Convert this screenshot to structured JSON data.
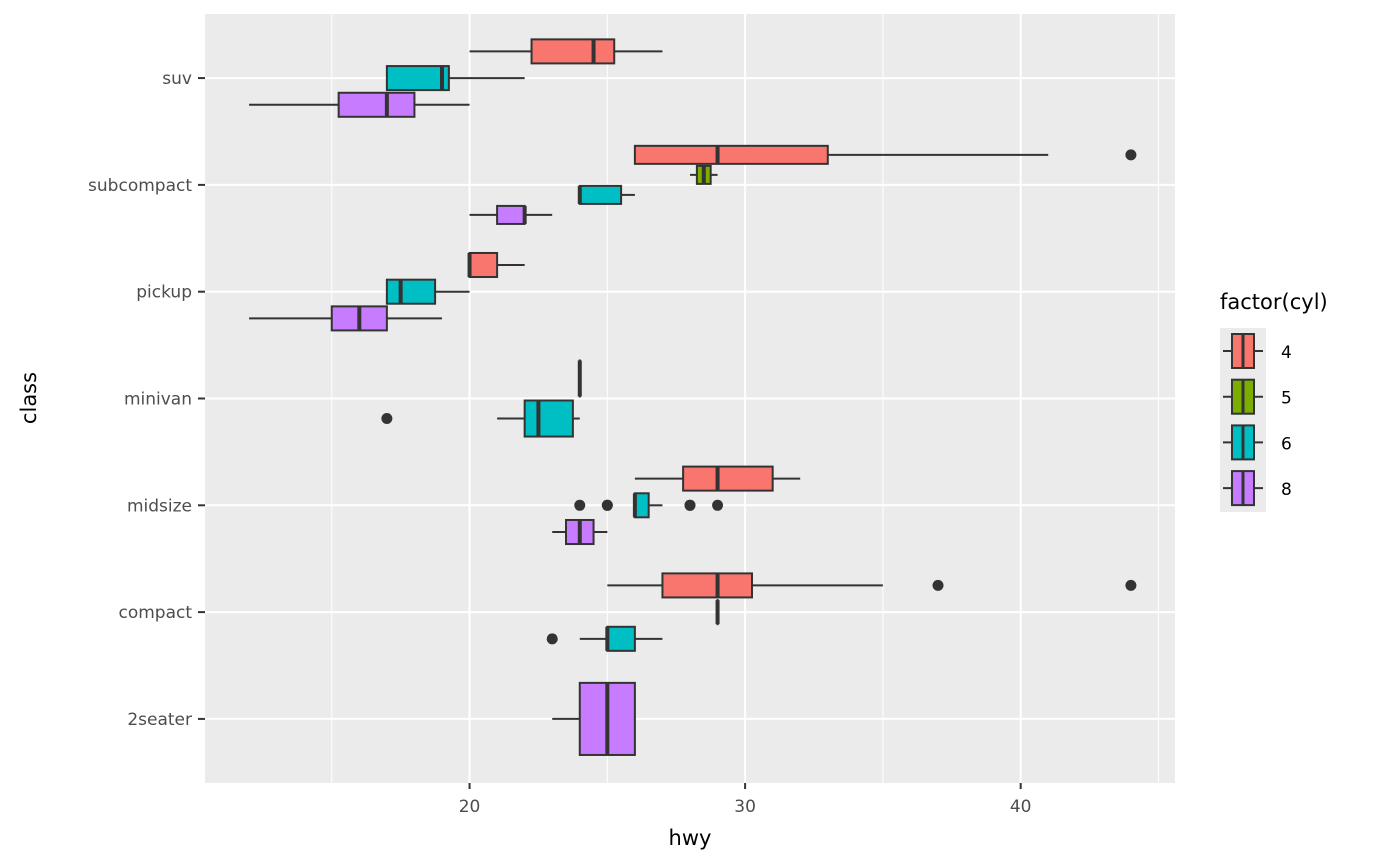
{
  "chart_data": {
    "type": "boxplot",
    "xlabel": "hwy",
    "ylabel": "class",
    "xlim": [
      10.4,
      45.6
    ],
    "xticks": [
      20,
      30,
      40
    ],
    "categories": [
      "2seater",
      "compact",
      "midsize",
      "minivan",
      "pickup",
      "subcompact",
      "suv"
    ],
    "legend": {
      "title": "factor(cyl)",
      "position": "right",
      "entries": [
        {
          "label": "4",
          "color": "#F8766D"
        },
        {
          "label": "5",
          "color": "#7CAE00"
        },
        {
          "label": "6",
          "color": "#00BFC4"
        },
        {
          "label": "8",
          "color": "#C77CFF"
        }
      ]
    },
    "boxes": [
      {
        "class": "suv",
        "groups": [
          {
            "cyl": "4",
            "lo": 20,
            "q1": 22.25,
            "med": 24.5,
            "q3": 25.25,
            "hi": 27,
            "out": []
          },
          {
            "cyl": "6",
            "lo": 17,
            "q1": 17,
            "med": 19,
            "q3": 19.25,
            "hi": 22,
            "out": []
          },
          {
            "cyl": "8",
            "lo": 12,
            "q1": 15.25,
            "med": 17,
            "q3": 18,
            "hi": 20,
            "out": []
          }
        ]
      },
      {
        "class": "subcompact",
        "groups": [
          {
            "cyl": "4",
            "lo": 26,
            "q1": 26,
            "med": 29,
            "q3": 33,
            "hi": 41,
            "out": [
              44
            ]
          },
          {
            "cyl": "5",
            "lo": 28,
            "q1": 28.25,
            "med": 28.5,
            "q3": 28.75,
            "hi": 29,
            "out": []
          },
          {
            "cyl": "6",
            "lo": 24,
            "q1": 24,
            "med": 24,
            "q3": 25.5,
            "hi": 26,
            "out": []
          },
          {
            "cyl": "8",
            "lo": 20,
            "q1": 21,
            "med": 22,
            "q3": 22,
            "hi": 23,
            "out": []
          }
        ]
      },
      {
        "class": "pickup",
        "groups": [
          {
            "cyl": "4",
            "lo": 20,
            "q1": 20,
            "med": 20,
            "q3": 21,
            "hi": 22,
            "out": []
          },
          {
            "cyl": "6",
            "lo": 17,
            "q1": 17,
            "med": 17.5,
            "q3": 18.75,
            "hi": 20,
            "out": []
          },
          {
            "cyl": "8",
            "lo": 12,
            "q1": 15,
            "med": 16,
            "q3": 17,
            "hi": 19,
            "out": []
          }
        ]
      },
      {
        "class": "minivan",
        "groups": [
          {
            "cyl": "4",
            "lo": 24,
            "q1": 24,
            "med": 24,
            "q3": 24,
            "hi": 24,
            "out": []
          },
          {
            "cyl": "6",
            "lo": 21,
            "q1": 22,
            "med": 22.5,
            "q3": 23.75,
            "hi": 24,
            "out": [
              17
            ]
          }
        ]
      },
      {
        "class": "midsize",
        "groups": [
          {
            "cyl": "4",
            "lo": 26,
            "q1": 27.75,
            "med": 29,
            "q3": 31,
            "hi": 32,
            "out": []
          },
          {
            "cyl": "6",
            "lo": 26,
            "q1": 26,
            "med": 26,
            "q3": 26.5,
            "hi": 27,
            "out": [
              24,
              25,
              25,
              28,
              28,
              29
            ]
          },
          {
            "cyl": "8",
            "lo": 23,
            "q1": 23.5,
            "med": 24,
            "q3": 24.5,
            "hi": 25,
            "out": []
          }
        ]
      },
      {
        "class": "compact",
        "groups": [
          {
            "cyl": "4",
            "lo": 25,
            "q1": 27,
            "med": 29,
            "q3": 30.25,
            "hi": 35,
            "out": [
              37,
              44
            ]
          },
          {
            "cyl": "5",
            "lo": 29,
            "q1": 29,
            "med": 29,
            "q3": 29,
            "hi": 29,
            "out": []
          },
          {
            "cyl": "6",
            "lo": 24,
            "q1": 25,
            "med": 25,
            "q3": 26,
            "hi": 27,
            "out": [
              23
            ]
          }
        ]
      },
      {
        "class": "2seater",
        "groups": [
          {
            "cyl": "8",
            "lo": 23,
            "q1": 24,
            "med": 25,
            "q3": 26,
            "hi": 26,
            "out": []
          }
        ]
      }
    ]
  }
}
